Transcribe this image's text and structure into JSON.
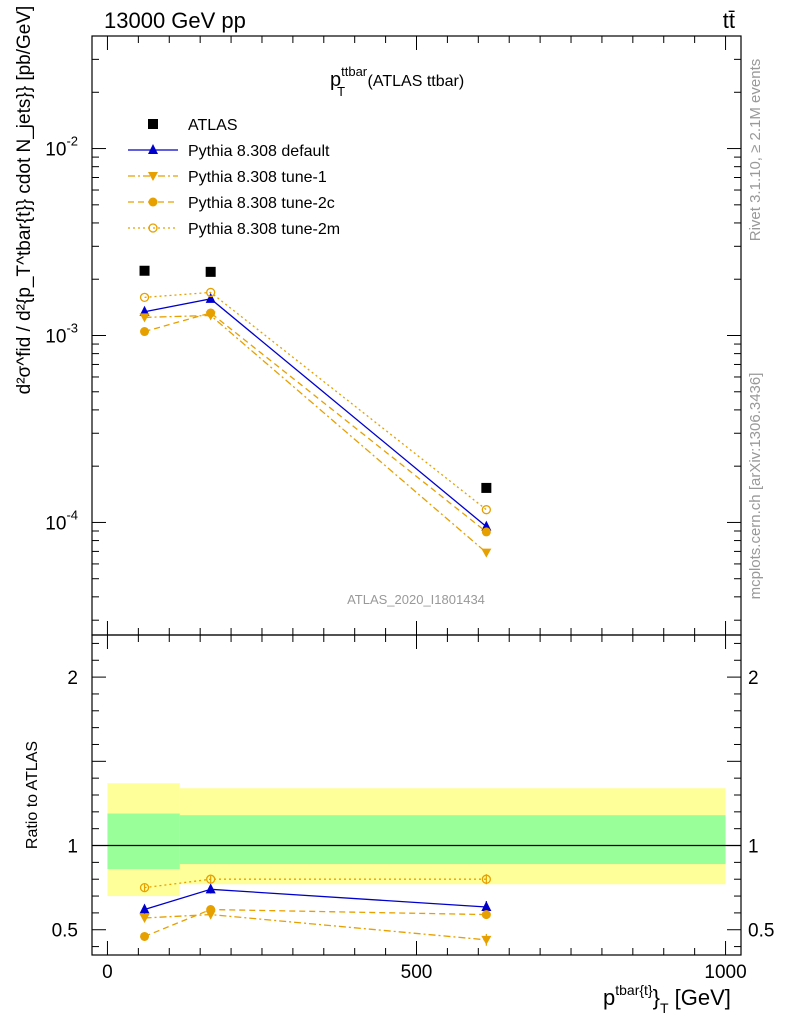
{
  "header": {
    "left": "13000 GeV pp",
    "right": "tt̄"
  },
  "plot": {
    "title_main": "p",
    "title_sup": "ttbar",
    "title_sub": "T",
    "title_rest": " (ATLAS ttbar)",
    "watermark": "ATLAS_2020_I1801434",
    "side_rivet": "Rivet 3.1.10, ≥ 2.1M events",
    "side_mcplots": "mcplots.cern.ch [arXiv:1306.3436]"
  },
  "axes": {
    "ylabel_upper": "d²σ^fid / d²{p_T^tbar{t}} cdot N_jets}} [pb/GeV]",
    "ylabel_lower": "Ratio to ATLAS",
    "xlabel_main": "p",
    "xlabel_sup": "tbar{t}",
    "xlabel_rest": "}",
    "xlabel_sub": "T",
    "xlabel_unit": " [GeV]"
  },
  "chart_data": [
    {
      "type": "scatter",
      "panel": "main",
      "yscale": "log",
      "xlim": [
        -25,
        1025
      ],
      "ylim": [
        2.5e-05,
        0.04
      ],
      "yticks": [
        {
          "value": 0.0001,
          "base": "10",
          "exp": "-4"
        },
        {
          "value": 0.001,
          "base": "10",
          "exp": "-3"
        },
        {
          "value": 0.01,
          "base": "10",
          "exp": "-2"
        }
      ],
      "x": [
        60,
        167,
        613
      ],
      "series": [
        {
          "name": "ATLAS",
          "color": "#000000",
          "marker": "square",
          "line": "none",
          "values": [
            0.00222,
            0.00219,
            0.000153
          ]
        },
        {
          "name": "Pythia 8.308 default",
          "color": "#0000cc",
          "marker": "triangle-up",
          "line": "solid",
          "values": [
            0.00134,
            0.00157,
            9.5e-05
          ]
        },
        {
          "name": "Pythia 8.308 tune-1",
          "color": "#e6a000",
          "marker": "triangle-down",
          "line": "dashdot",
          "values": [
            0.00125,
            0.00128,
            6.9e-05
          ]
        },
        {
          "name": "Pythia 8.308 tune-2c",
          "color": "#e6a000",
          "marker": "circle-filled",
          "line": "dashed",
          "values": [
            0.00105,
            0.00132,
            8.9e-05
          ]
        },
        {
          "name": "Pythia 8.308 tune-2m",
          "color": "#e6a000",
          "marker": "circle-open",
          "line": "dotted",
          "values": [
            0.0016,
            0.0017,
            0.000117
          ]
        }
      ],
      "legend": "top-left"
    },
    {
      "type": "scatter",
      "panel": "ratio",
      "xlim": [
        -25,
        1025
      ],
      "ylim": [
        0.35,
        2.25
      ],
      "xticks": [
        0,
        500,
        1000
      ],
      "yticks": [
        0.5,
        1,
        2
      ],
      "bands": [
        {
          "x0": 0,
          "x1": 117,
          "yellow": [
            0.7,
            1.37
          ],
          "green": [
            0.86,
            1.19
          ]
        },
        {
          "x0": 117,
          "x1": 1000,
          "yellow": [
            0.77,
            1.34
          ],
          "green": [
            0.89,
            1.18
          ]
        }
      ],
      "band_colors": {
        "yellow": "#ffff99",
        "green": "#99ff99"
      },
      "x": [
        60,
        167,
        613
      ],
      "series": [
        {
          "name": "Pythia 8.308 default",
          "values": [
            0.62,
            0.74,
            0.635
          ],
          "errors": [
            0.025,
            0.025,
            0.035
          ]
        },
        {
          "name": "Pythia 8.308 tune-1",
          "values": [
            0.57,
            0.59,
            0.44
          ],
          "errors": [
            0.025,
            0.025,
            0.035
          ]
        },
        {
          "name": "Pythia 8.308 tune-2c",
          "values": [
            0.46,
            0.62,
            0.59
          ],
          "errors": [
            0.025,
            0.025,
            0.025
          ]
        },
        {
          "name": "Pythia 8.308 tune-2m",
          "values": [
            0.75,
            0.8,
            0.8
          ],
          "errors": [
            0.02,
            0.02,
            0.03
          ]
        }
      ]
    }
  ]
}
